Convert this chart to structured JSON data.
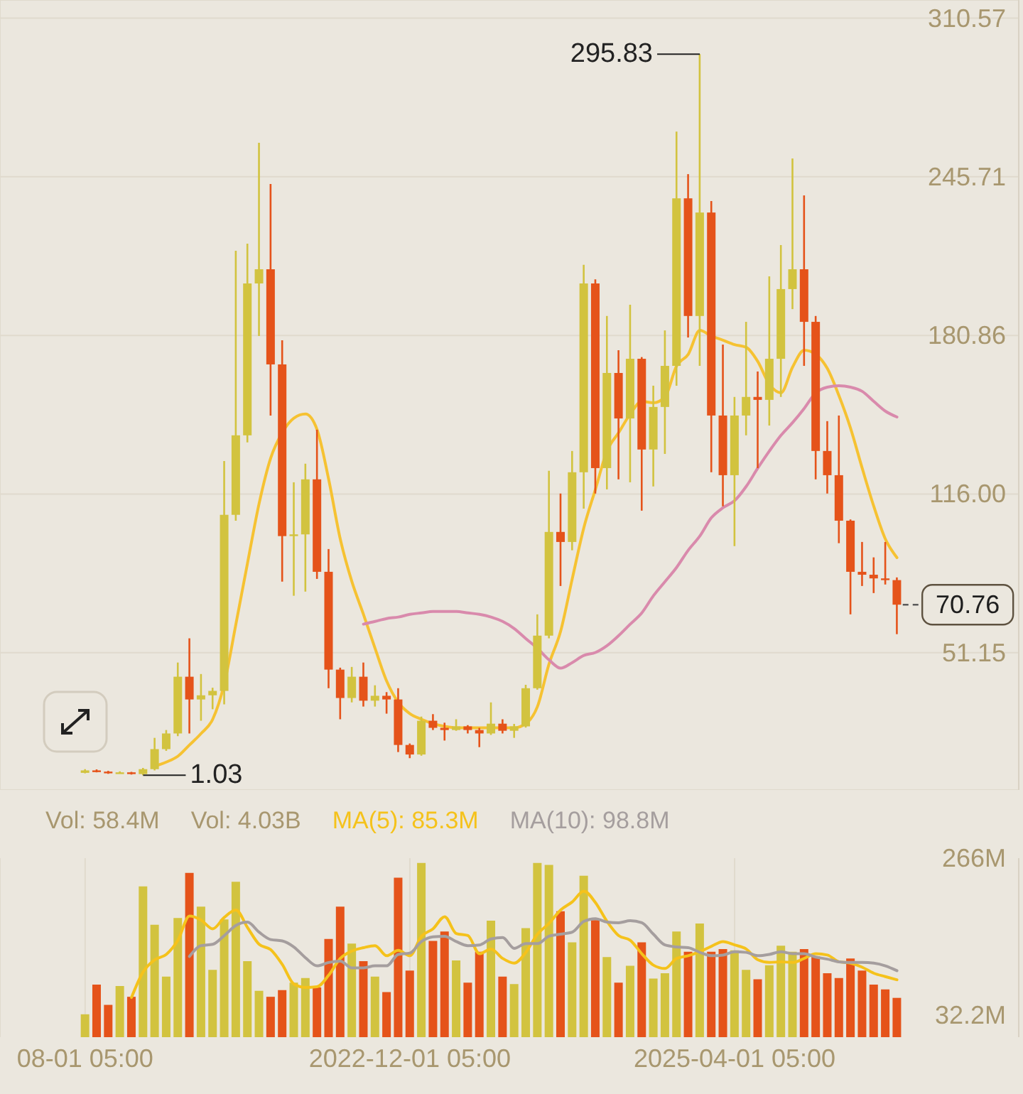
{
  "chart_data": [
    {
      "type": "candlestick",
      "categories": [
        null,
        null,
        null,
        null,
        null,
        null,
        null,
        null,
        null,
        null,
        null,
        null,
        null,
        null,
        null,
        null,
        null,
        null,
        null,
        null,
        null,
        null,
        null,
        null,
        null,
        null,
        null,
        null,
        null,
        null,
        null,
        null,
        null,
        null,
        null,
        null,
        null,
        null,
        null,
        null,
        null,
        null,
        null,
        null,
        null,
        null,
        null,
        null,
        null,
        null,
        null,
        null,
        null,
        null,
        null,
        null,
        null,
        null,
        null,
        null,
        null,
        null,
        null,
        null,
        null,
        null,
        null,
        null,
        null,
        null,
        null
      ],
      "ohlc": [
        [
          2,
          3.5,
          1.8,
          3
        ],
        [
          3,
          3.4,
          2.2,
          2.5
        ],
        [
          2.5,
          2.8,
          1.6,
          1.9
        ],
        [
          1.9,
          2.6,
          1.7,
          2.2
        ],
        [
          2.2,
          2.4,
          1.3,
          1.5
        ],
        [
          1.5,
          4,
          1.03,
          3.5
        ],
        [
          3.5,
          16.3,
          3,
          11.7
        ],
        [
          11.7,
          19.5,
          11,
          18.1
        ],
        [
          18.1,
          47.1,
          17,
          41.3
        ],
        [
          41.3,
          57,
          18.1,
          32
        ],
        [
          32,
          42.4,
          23.3,
          33.7
        ],
        [
          33.7,
          36.8,
          28,
          35.5
        ],
        [
          35.5,
          129.5,
          30,
          107.5
        ],
        [
          107.5,
          215.5,
          105.1,
          140
        ],
        [
          140,
          218.4,
          137.1,
          202.1
        ],
        [
          202.1,
          259.6,
          180.6,
          207.9
        ],
        [
          207.9,
          242.8,
          148.1,
          169
        ],
        [
          169,
          178.9,
          80.2,
          98.8
        ],
        [
          98.8,
          120.8,
          74.4,
          99.5
        ],
        [
          99.5,
          128.4,
          76.1,
          122
        ],
        [
          122,
          142.3,
          81.3,
          84.2
        ],
        [
          84.2,
          93.5,
          36.6,
          44.2
        ],
        [
          44.2,
          45,
          23.9,
          32.6
        ],
        [
          32.6,
          45.3,
          30.8,
          41.3
        ],
        [
          41.3,
          47.1,
          29.1,
          31.5
        ],
        [
          31.5,
          37.8,
          29.1,
          33.5
        ],
        [
          33.5,
          35,
          26.2,
          32
        ],
        [
          32,
          36.6,
          10.5,
          13.4
        ],
        [
          13.4,
          14,
          8,
          9.5
        ],
        [
          9.5,
          25,
          9,
          23.3
        ],
        [
          23.3,
          26,
          19.5,
          20.4
        ],
        [
          20.4,
          22.5,
          15.2,
          19.5
        ],
        [
          19.5,
          23.9,
          19.2,
          21
        ],
        [
          21,
          21.5,
          18.1,
          19.5
        ],
        [
          19.5,
          20.4,
          12.5,
          18.1
        ],
        [
          18.1,
          30.8,
          17.5,
          22.1
        ],
        [
          22.1,
          23.9,
          18.1,
          19.2
        ],
        [
          19.2,
          22,
          16.3,
          21
        ],
        [
          21,
          38,
          20.5,
          36.6
        ],
        [
          36.6,
          66.8,
          36,
          58.1
        ],
        [
          58.1,
          125.5,
          57,
          100.5
        ],
        [
          100.5,
          116.2,
          78.4,
          96.4
        ],
        [
          96.4,
          133.6,
          93,
          124.9
        ],
        [
          124.9,
          209.7,
          110,
          202.1
        ],
        [
          202.1,
          203.8,
          116.2,
          126.6
        ],
        [
          126.6,
          188.8,
          117.9,
          165.5
        ],
        [
          165.5,
          174.8,
          122,
          146.9
        ],
        [
          146.9,
          193.4,
          120.8,
          171.3
        ],
        [
          171.3,
          172,
          109.2,
          134.2
        ],
        [
          134.2,
          160.3,
          119.1,
          151.6
        ],
        [
          151.6,
          182.9,
          132.4,
          168.4
        ],
        [
          168.4,
          264.2,
          160.3,
          236.9
        ],
        [
          236.9,
          246.8,
          180,
          188.8
        ],
        [
          188.8,
          295.83,
          168.4,
          231.1
        ],
        [
          231.1,
          235.8,
          124.9,
          148.1
        ],
        [
          148.1,
          177.1,
          111,
          123.7
        ],
        [
          123.7,
          155.7,
          94.7,
          148.1
        ],
        [
          148.1,
          186.4,
          140,
          155.7
        ],
        [
          155.7,
          166.1,
          126.6,
          154.5
        ],
        [
          154.5,
          205,
          144,
          171.3
        ],
        [
          171.3,
          217.8,
          155.7,
          199.8
        ],
        [
          199.8,
          253.2,
          191.6,
          207.9
        ],
        [
          207.9,
          238.1,
          168.4,
          186.4
        ],
        [
          186.4,
          188.8,
          122,
          133.6
        ],
        [
          133.6,
          145.8,
          116.2,
          123.7
        ],
        [
          123.7,
          148.1,
          95.9,
          105.1
        ],
        [
          105.1,
          105.6,
          66.8,
          84.2
        ],
        [
          84.2,
          96.4,
          78.4,
          83
        ],
        [
          83,
          90.1,
          75.5,
          81.5
        ],
        [
          81.5,
          96.4,
          79,
          80.8
        ],
        [
          80.8,
          81.9,
          58.7,
          70.76
        ]
      ],
      "colors": [
        "#d2c33f",
        "#e5531a",
        "#e5531a",
        "#d2c33f",
        "#e5531a",
        "#d2c33f",
        "#d2c33f",
        "#d2c33f",
        "#d2c33f",
        "#e5531a",
        "#d2c33f",
        "#d2c33f",
        "#d2c33f",
        "#d2c33f",
        "#d2c33f",
        "#d2c33f",
        "#e5531a",
        "#e5531a",
        "#d2c33f",
        "#d2c33f",
        "#e5531a",
        "#e5531a",
        "#e5531a",
        "#d2c33f",
        "#e5531a",
        "#d2c33f",
        "#e5531a",
        "#e5531a",
        "#e5531a",
        "#d2c33f",
        "#e5531a",
        "#e5531a",
        "#d2c33f",
        "#e5531a",
        "#e5531a",
        "#d2c33f",
        "#e5531a",
        "#d2c33f",
        "#d2c33f",
        "#d2c33f",
        "#d2c33f",
        "#e5531a",
        "#d2c33f",
        "#d2c33f",
        "#e5531a",
        "#d2c33f",
        "#e5531a",
        "#d2c33f",
        "#e5531a",
        "#d2c33f",
        "#d2c33f",
        "#d2c33f",
        "#e5531a",
        "#d2c33f",
        "#e5531a",
        "#e5531a",
        "#d2c33f",
        "#d2c33f",
        "#e5531a",
        "#d2c33f",
        "#d2c33f",
        "#d2c33f",
        "#e5531a",
        "#e5531a",
        "#e5531a",
        "#e5531a",
        "#e5531a",
        "#e5531a",
        "#e5531a",
        "#e5531a",
        "#e5531a"
      ],
      "series": [
        {
          "type": "line",
          "color": "#f6c232",
          "values": [
            null,
            null,
            null,
            null,
            null,
            null,
            4.7,
            6.4,
            8.8,
            13.4,
            18.1,
            23.9,
            38.4,
            62.8,
            87.7,
            112.1,
            130.7,
            141.1,
            147,
            148.7,
            142.3,
            122,
            97.6,
            80.2,
            66.8,
            52.9,
            39.5,
            30.8,
            26.2,
            23.9,
            22.1,
            21,
            20.4,
            20.4,
            20.4,
            20.4,
            20.4,
            20.4,
            22.1,
            29.1,
            46.5,
            59.9,
            81.3,
            102.2,
            117.9,
            133.6,
            141.1,
            148.7,
            153.9,
            153.3,
            155.7,
            168.4,
            173.1,
            182.9,
            180.6,
            178.9,
            177.1,
            176,
            170.2,
            160.9,
            157.4,
            167.9,
            174.8,
            173.1,
            167.3,
            156.2,
            142.9,
            126.6,
            111,
            97.6,
            90
          ]
        },
        {
          "type": "line",
          "color": "#d98aac",
          "values": [
            null,
            null,
            null,
            null,
            null,
            null,
            null,
            null,
            null,
            null,
            null,
            null,
            null,
            null,
            null,
            null,
            null,
            null,
            null,
            null,
            null,
            null,
            null,
            null,
            62.8,
            63.9,
            65.1,
            65.7,
            66.8,
            67.4,
            68,
            68,
            68,
            67.4,
            66.8,
            65.7,
            63.9,
            61,
            56.9,
            52.9,
            48.2,
            44.8,
            47.1,
            50,
            51.2,
            54,
            58.1,
            62.8,
            67.4,
            74.4,
            80.2,
            86,
            93,
            98.8,
            106.3,
            110.4,
            113.3,
            119.1,
            126.6,
            133.6,
            140,
            145.2,
            151,
            157.4,
            159.7,
            160.3,
            159.7,
            158,
            153.9,
            149.9,
            147.5
          ]
        }
      ],
      "ylim": [
        -5,
        318
      ],
      "yticks": [
        51.15,
        {
          "value": 116,
          "label": "116.00"
        },
        180.86,
        245.71,
        310.57
      ],
      "grid": true,
      "annotations": [
        "295.83",
        "1.03"
      ],
      "ref_lines": [
        {
          "axis": "y",
          "value": 70.76,
          "label": "70.76",
          "color": "#5a5a5a",
          "line_style": "dashed"
        }
      ]
    },
    {
      "type": "bar",
      "categories": [
        "08-01 05:00",
        null,
        null,
        null,
        null,
        null,
        null,
        null,
        null,
        null,
        null,
        null,
        null,
        null,
        null,
        null,
        null,
        null,
        null,
        null,
        null,
        null,
        null,
        null,
        null,
        null,
        null,
        null,
        "2022-12-01 05:00",
        null,
        null,
        null,
        null,
        null,
        null,
        null,
        null,
        null,
        null,
        null,
        null,
        null,
        null,
        null,
        null,
        null,
        null,
        null,
        null,
        null,
        null,
        null,
        null,
        null,
        null,
        null,
        "2025-04-01 05:00",
        null,
        null,
        null,
        null,
        null,
        null,
        null,
        null,
        null,
        null,
        null,
        null,
        null,
        null
      ],
      "series": [
        {
          "type": "bar",
          "values": [
            34,
            78,
            48,
            76,
            60,
            224,
            167,
            90,
            177,
            244,
            194,
            100,
            175,
            231,
            113,
            69,
            60,
            70,
            81,
            88,
            74,
            146,
            194,
            139,
            113,
            90,
            67,
            237,
            99,
            259,
            143,
            157,
            114,
            81,
            127,
            173,
            90,
            79,
            162,
            259,
            256,
            187,
            141,
            240,
            174,
            119,
            81,
            106,
            141,
            87,
            95,
            157,
            127,
            169,
            127,
            131,
            129,
            100,
            86,
            107,
            136,
            127,
            131,
            120,
            95,
            88,
            117,
            99,
            78,
            71,
            58.4
          ],
          "colors": [
            "#d2c33f",
            "#e5531a",
            "#e5531a",
            "#d2c33f",
            "#e5531a",
            "#d2c33f",
            "#d2c33f",
            "#d2c33f",
            "#d2c33f",
            "#e5531a",
            "#d2c33f",
            "#d2c33f",
            "#d2c33f",
            "#d2c33f",
            "#d2c33f",
            "#d2c33f",
            "#e5531a",
            "#e5531a",
            "#d2c33f",
            "#d2c33f",
            "#e5531a",
            "#e5531a",
            "#e5531a",
            "#d2c33f",
            "#e5531a",
            "#d2c33f",
            "#e5531a",
            "#e5531a",
            "#e5531a",
            "#d2c33f",
            "#e5531a",
            "#e5531a",
            "#d2c33f",
            "#e5531a",
            "#e5531a",
            "#d2c33f",
            "#e5531a",
            "#d2c33f",
            "#d2c33f",
            "#d2c33f",
            "#d2c33f",
            "#e5531a",
            "#d2c33f",
            "#d2c33f",
            "#e5531a",
            "#d2c33f",
            "#e5531a",
            "#d2c33f",
            "#e5531a",
            "#d2c33f",
            "#d2c33f",
            "#d2c33f",
            "#e5531a",
            "#d2c33f",
            "#e5531a",
            "#e5531a",
            "#d2c33f",
            "#d2c33f",
            "#e5531a",
            "#d2c33f",
            "#d2c33f",
            "#d2c33f",
            "#e5531a",
            "#e5531a",
            "#e5531a",
            "#e5531a",
            "#e5531a",
            "#e5531a",
            "#e5531a",
            "#e5531a",
            "#e5531a"
          ]
        },
        {
          "type": "line",
          "name": "MA(5): 85.3M",
          "color": "#f5c21b",
          "values": [
            null,
            null,
            null,
            null,
            59,
            97,
            115,
            123,
            144,
            180,
            174,
            161,
            178,
            189,
            163,
            138,
            130,
            108,
            79,
            74,
            75,
            92,
            117,
            128,
            133,
            136,
            121,
            129,
            121,
            150,
            161,
            179,
            154,
            151,
            124,
            131,
            117,
            110,
            126,
            153,
            169,
            189,
            201,
            217,
            200,
            172,
            151,
            144,
            124,
            107,
            102,
            117,
            121,
            127,
            135,
            142,
            137,
            131,
            115,
            111,
            112,
            111,
            117,
            124,
            122,
            112,
            110,
            104,
            95,
            90,
            85.3
          ]
        },
        {
          "type": "line",
          "name": "MA(10): 98.8M",
          "color": "#a59e9e",
          "values": [
            null,
            null,
            null,
            null,
            null,
            null,
            null,
            null,
            null,
            120,
            136,
            138,
            151,
            166,
            171,
            156,
            145,
            143,
            134,
            118,
            106,
            111,
            113,
            103,
            103,
            106,
            106,
            123,
            125,
            142,
            149,
            150,
            142,
            136,
            137,
            146,
            148,
            132,
            139,
            139,
            150,
            153,
            156,
            172,
            176,
            171,
            170,
            173,
            170,
            153,
            137,
            134,
            133,
            126,
            121,
            122,
            127,
            126,
            121,
            123,
            127,
            124,
            124,
            119,
            116,
            112,
            111,
            111,
            110,
            106,
            98.8
          ]
        }
      ],
      "ylim": [
        0,
        266
      ],
      "yticks": [
        {
          "value": 266,
          "label": "266M"
        },
        {
          "value": 32.2,
          "label": "32.2M"
        }
      ],
      "grid": "x",
      "legend": "top left",
      "annotations": [
        "Vol: 58.4M",
        "Vol: 4.03B"
      ]
    }
  ]
}
